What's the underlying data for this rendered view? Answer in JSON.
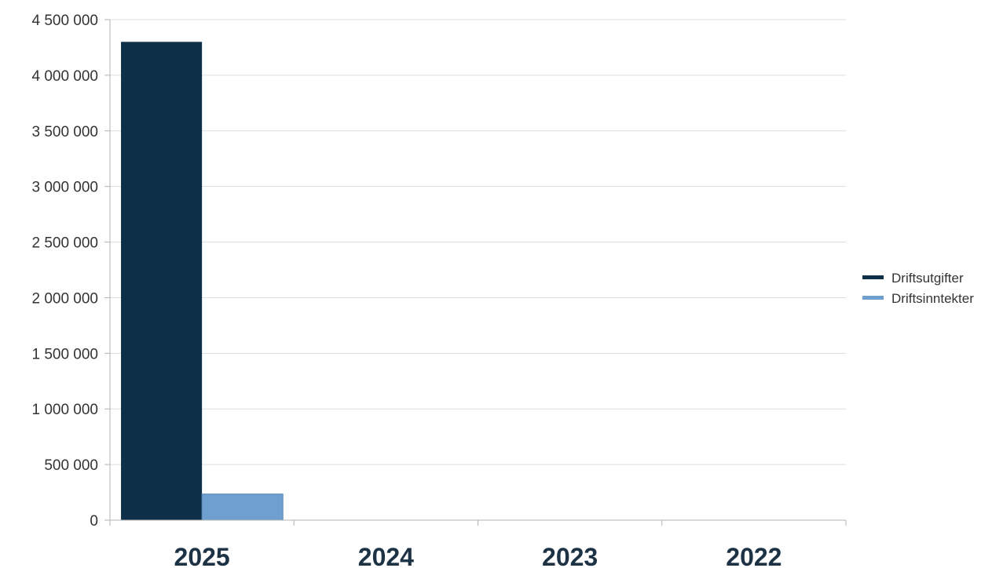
{
  "chart_data": {
    "type": "bar",
    "categories": [
      "2025",
      "2024",
      "2023",
      "2022"
    ],
    "series": [
      {
        "name": "Driftsutgifter",
        "values": [
          4300000,
          0,
          0,
          0
        ],
        "color": "#0d2f47"
      },
      {
        "name": "Driftsinntekter",
        "values": [
          235000,
          0,
          0,
          0
        ],
        "color": "#6f9fcf"
      }
    ],
    "ylim": [
      0,
      4500000
    ],
    "yticks": [
      0,
      500000,
      1000000,
      1500000,
      2000000,
      2500000,
      3000000,
      3500000,
      4000000,
      4500000
    ],
    "ytick_labels": [
      "0",
      "500 000",
      "1 000 000",
      "1 500 000",
      "2 000 000",
      "2 500 000",
      "3 000 000",
      "3 500 000",
      "4 000 000",
      "4 500 000"
    ],
    "grid": true,
    "legend_position": "right",
    "title": "",
    "xlabel": "",
    "ylabel": ""
  }
}
